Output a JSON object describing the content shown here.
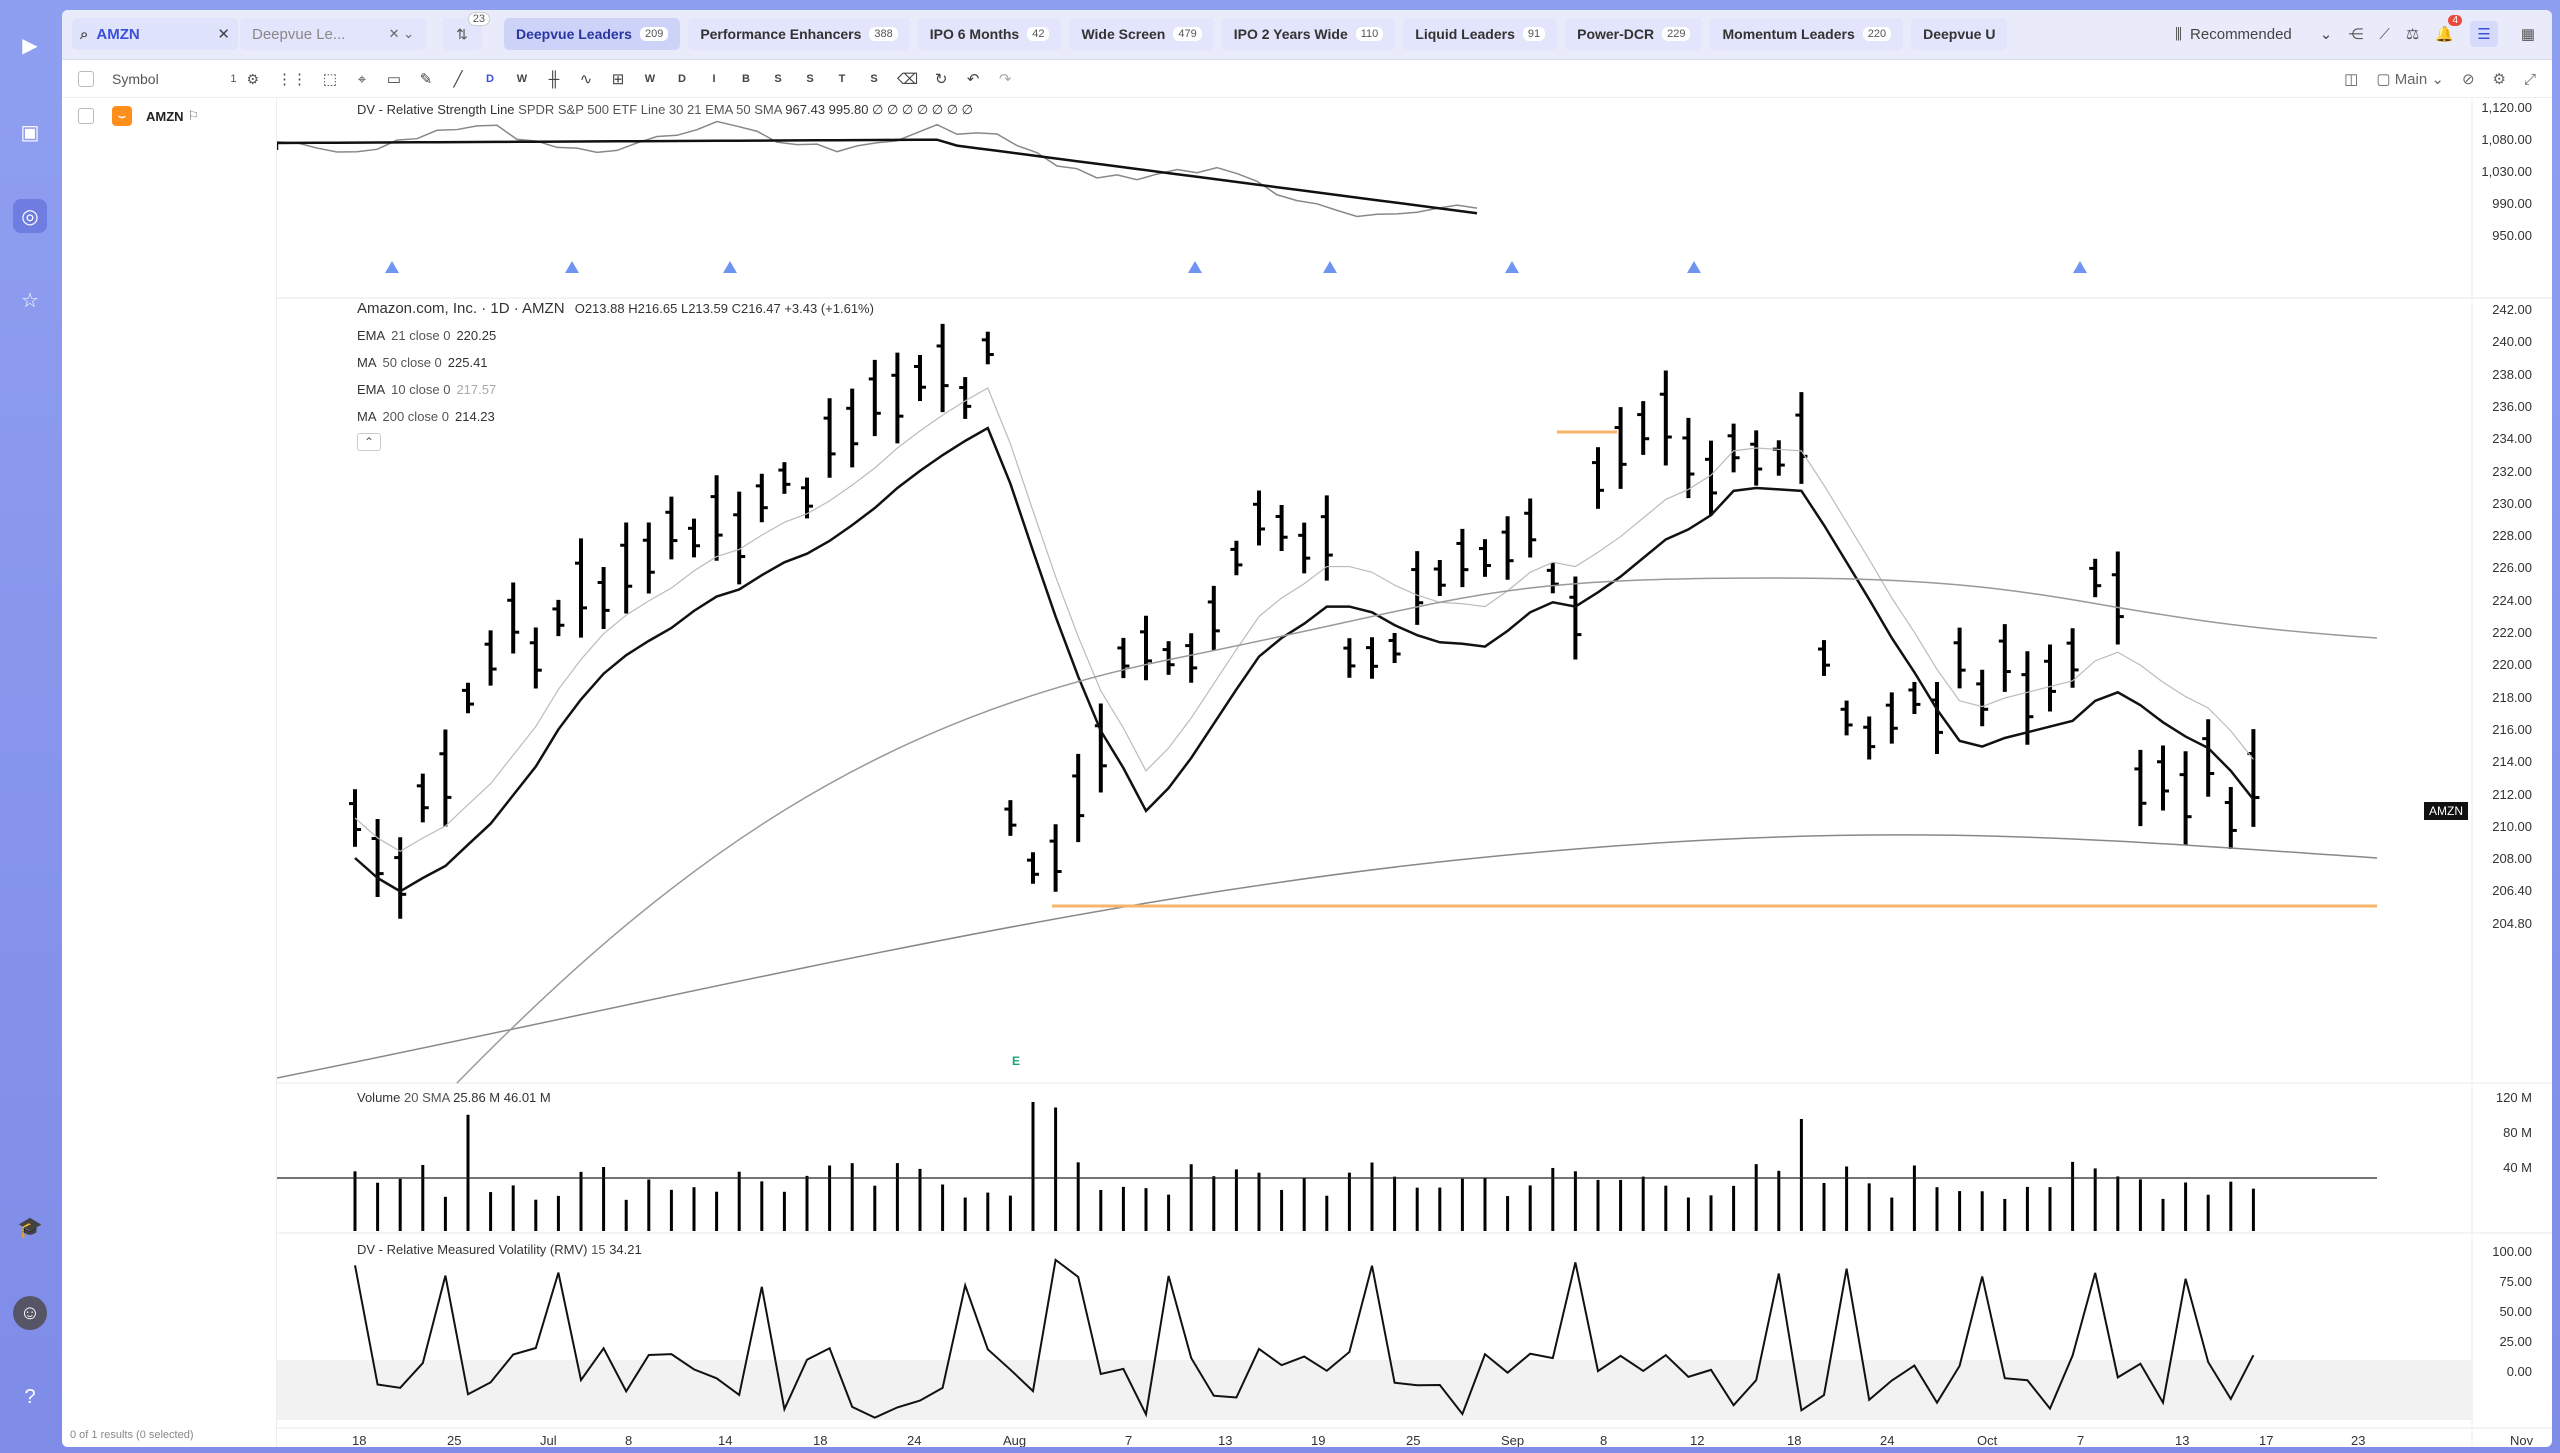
{
  "tabs": {
    "search_value": "AMZN",
    "watchlist_tab": "Deepvue Le...",
    "filter_count": "23",
    "chips": [
      {
        "label": "Deepvue Leaders",
        "count": "209",
        "active": true
      },
      {
        "label": "Performance Enhancers",
        "count": "388"
      },
      {
        "label": "IPO 6 Months",
        "count": "42"
      },
      {
        "label": "Wide Screen",
        "count": "479"
      },
      {
        "label": "IPO 2 Years Wide",
        "count": "110"
      },
      {
        "label": "Liquid Leaders",
        "count": "91"
      },
      {
        "label": "Power-DCR",
        "count": "229"
      },
      {
        "label": "Momentum Leaders",
        "count": "220"
      },
      {
        "label": "Deepvue U",
        "count": ""
      }
    ],
    "recommended": "Recommended",
    "notification_count": "4"
  },
  "toolbar": {
    "symbol_header": "Symbol",
    "symbol_count": "1",
    "intervals": [
      "D",
      "W"
    ],
    "timeframe_letters": [
      "W",
      "D",
      "I",
      "B",
      "S",
      "S",
      "T",
      "S"
    ],
    "layout_label": "Main"
  },
  "sidebar": {
    "rows": [
      {
        "symbol": "AMZN"
      }
    ],
    "footer": "0 of 1 results (0 selected)"
  },
  "chart": {
    "rs_title": "DV - Relative Strength Line",
    "rs_params": "SPDR S&P 500 ETF Line 30 21 EMA 50 SMA",
    "rs_values": "967.43  995.80  ∅ ∅ ∅ ∅ ∅ ∅ ∅",
    "main_title": "Amazon.com, Inc. · 1D · AMZN",
    "ohlc": "O213.88  H216.65  L213.59  C216.47  +3.43 (+1.61%)",
    "indicators": [
      {
        "name": "EMA",
        "params": "21 close 0",
        "value": "220.25",
        "muted": false
      },
      {
        "name": "MA",
        "params": "50 close 0",
        "value": "225.41",
        "muted": false
      },
      {
        "name": "EMA",
        "params": "10 close 0",
        "value": "217.57",
        "muted": true
      },
      {
        "name": "MA",
        "params": "200 close 0",
        "value": "214.23",
        "muted": false
      }
    ],
    "price_tag": "AMZN",
    "earnings_marker": "E",
    "volume_title": "Volume",
    "volume_params": "20 SMA",
    "volume_values": "25.86 M  46.01 M",
    "rmv_title": "DV - Relative Measured Volatility (RMV)",
    "rmv_params": "15",
    "rmv_value": "34.21",
    "rs_axis": [
      "1,120.00",
      "1,080.00",
      "1,030.00",
      "990.00",
      "950.00"
    ],
    "price_axis": [
      "242.00",
      "240.00",
      "238.00",
      "236.00",
      "234.00",
      "232.00",
      "230.00",
      "228.00",
      "226.00",
      "224.00",
      "222.00",
      "220.00",
      "218.00",
      "216.00",
      "214.00",
      "212.00",
      "210.00",
      "208.00",
      "206.40",
      "204.80"
    ],
    "vol_axis": [
      "120 M",
      "80 M",
      "40 M"
    ],
    "rmv_axis": [
      "100.00",
      "75.00",
      "50.00",
      "25.00",
      "0.00"
    ],
    "x_ticks": [
      "18",
      "25",
      "Jul",
      "8",
      "14",
      "18",
      "24",
      "Aug",
      "7",
      "13",
      "19",
      "25",
      "Sep",
      "8",
      "12",
      "18",
      "24",
      "Oct",
      "7",
      "13",
      "17",
      "23",
      "Nov"
    ]
  },
  "colors": {
    "accent": "#3b4fd8",
    "rail": "#8f9ff0",
    "rs_fill_up": "#8ab8f5",
    "level_line": "#f5b56a"
  }
}
